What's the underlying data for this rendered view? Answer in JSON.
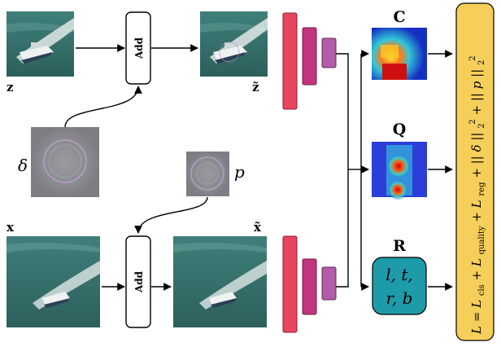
{
  "template_images": {
    "z": "z",
    "z_tilde": "z̃",
    "x": "x",
    "x_tilde": "x̃",
    "delta": "δ",
    "p": "p"
  },
  "add_blocks": {
    "top": "Add",
    "bottom": "Add"
  },
  "heads": {
    "c": "C",
    "q": "Q",
    "r": "R"
  },
  "regression_box": {
    "line1": "l, t,",
    "line2": "r, b"
  },
  "loss_formula": {
    "lhs": "L",
    "eq": " = ",
    "l_cls_main": "L",
    "l_cls_sub": "cls",
    "plus1": " + ",
    "l_quality_main": "L",
    "l_quality_sub": "quality",
    "plus2": " + ",
    "l_reg_main": "L",
    "l_reg_sub": "reg",
    "plus3": " + ||",
    "delta": "δ",
    "norm_close1": "||",
    "sub2a": "2",
    "sup2a": "2",
    "plus4": " + ||",
    "p": "p",
    "norm_close2": "||",
    "sub2b": "2",
    "sup2b": "2"
  },
  "colors": {
    "layer1": "#e8455f",
    "layer2": "#c2357c",
    "layer3": "#b35ca8",
    "regression_fill": "#1d9ba8",
    "loss_fill": "#f6cf5a",
    "sea": "#4a8a84",
    "sea_dark": "#2f6b66",
    "noise": "#8e8e8e"
  }
}
